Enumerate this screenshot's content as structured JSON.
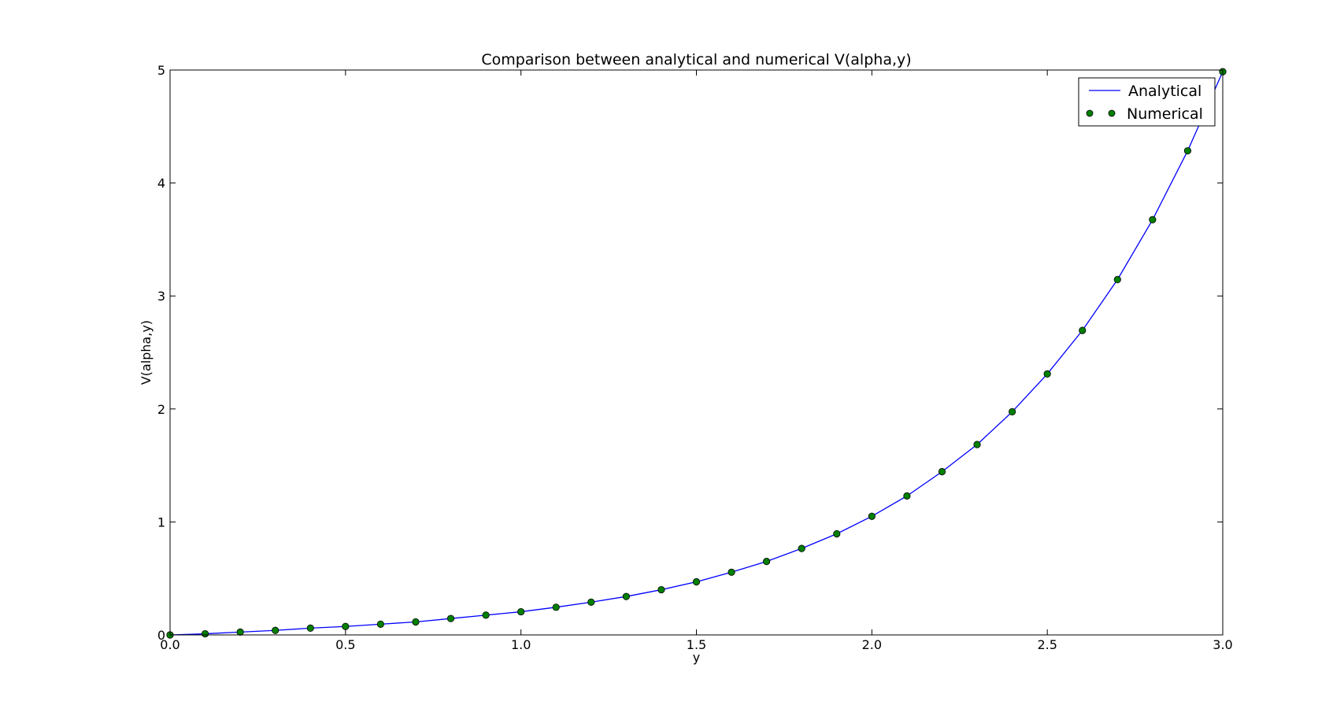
{
  "chart_data": {
    "type": "line",
    "title": "Comparison between analytical and numerical V(alpha,y)",
    "xlabel": "y",
    "ylabel": "V(alpha,y)",
    "xlim": [
      0.0,
      3.0
    ],
    "ylim": [
      0,
      5
    ],
    "xticks": [
      "0.0",
      "0.5",
      "1.0",
      "1.5",
      "2.0",
      "2.5",
      "3.0"
    ],
    "yticks": [
      "0",
      "1",
      "2",
      "3",
      "4",
      "5"
    ],
    "grid": false,
    "legend_position": "top-right",
    "x": [
      0.0,
      0.1,
      0.2,
      0.3,
      0.4,
      0.5,
      0.6,
      0.7,
      0.8,
      0.9,
      1.0,
      1.1,
      1.2,
      1.3,
      1.4,
      1.5,
      1.6,
      1.7,
      1.8,
      1.9,
      2.0,
      2.1,
      2.2,
      2.3,
      2.4,
      2.5,
      2.6,
      2.7,
      2.8,
      2.9,
      3.0
    ],
    "series": [
      {
        "name": "Analytical",
        "style": "line",
        "color": "#0000ff",
        "values": [
          0.0,
          0.01,
          0.025,
          0.04,
          0.06,
          0.075,
          0.095,
          0.115,
          0.145,
          0.175,
          0.205,
          0.245,
          0.29,
          0.34,
          0.4,
          0.47,
          0.555,
          0.65,
          0.765,
          0.895,
          1.05,
          1.23,
          1.445,
          1.685,
          1.975,
          2.31,
          2.695,
          3.145,
          3.675,
          4.285,
          4.985
        ]
      },
      {
        "name": "Numerical",
        "style": "markers",
        "color": "#007f00",
        "values": [
          0.0,
          0.01,
          0.025,
          0.04,
          0.06,
          0.075,
          0.095,
          0.115,
          0.145,
          0.175,
          0.205,
          0.245,
          0.29,
          0.34,
          0.4,
          0.47,
          0.555,
          0.65,
          0.765,
          0.895,
          1.05,
          1.23,
          1.445,
          1.685,
          1.975,
          2.31,
          2.695,
          3.145,
          3.675,
          4.285,
          4.985
        ]
      }
    ]
  }
}
